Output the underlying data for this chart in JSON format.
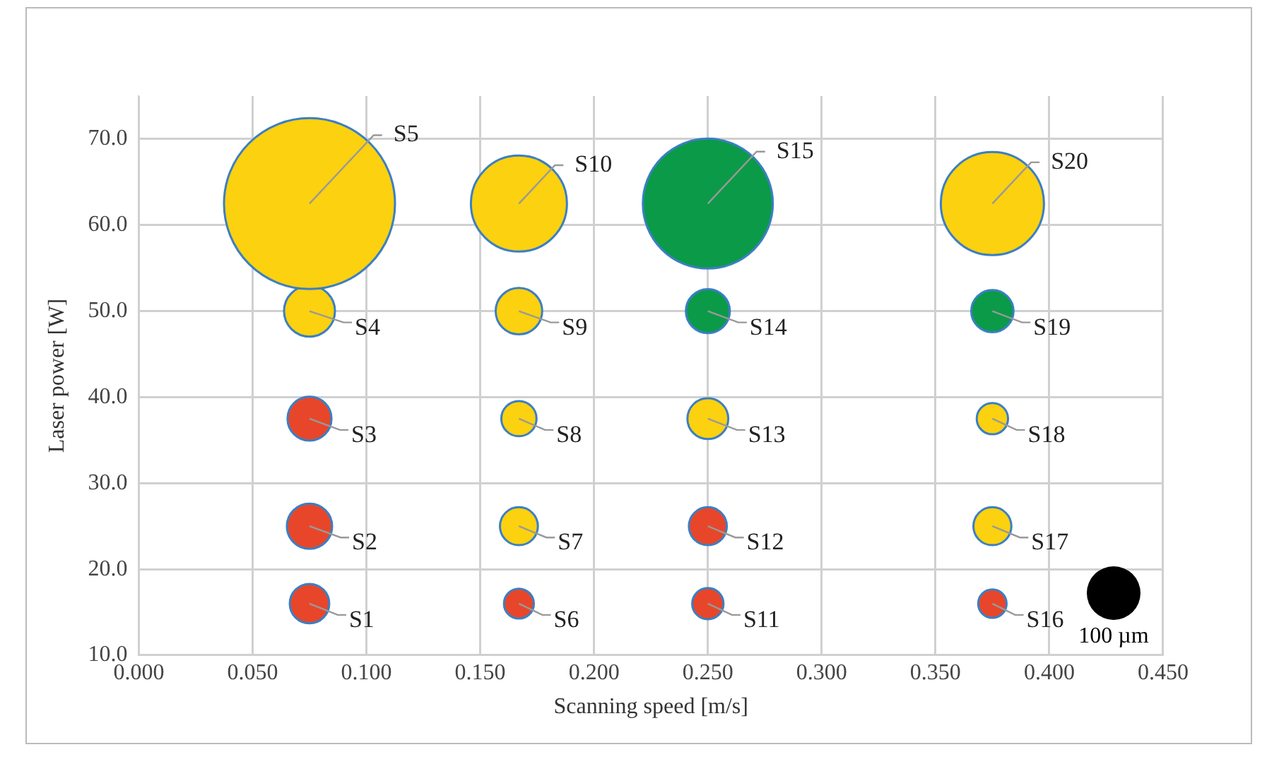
{
  "chart_data": {
    "type": "bubble",
    "xlabel": "Scanning speed [m/s]",
    "ylabel": "Laser power [W]",
    "xlim": [
      0,
      0.45
    ],
    "ylim": [
      10,
      75
    ],
    "xticks": [
      {
        "value": 0,
        "label": "0.000"
      },
      {
        "value": 0.05,
        "label": "0.050"
      },
      {
        "value": 0.1,
        "label": "0.100"
      },
      {
        "value": 0.15,
        "label": "0.150"
      },
      {
        "value": 0.2,
        "label": "0.200"
      },
      {
        "value": 0.25,
        "label": "0.250"
      },
      {
        "value": 0.3,
        "label": "0.300"
      },
      {
        "value": 0.35,
        "label": "0.350"
      },
      {
        "value": 0.4,
        "label": "0.400"
      },
      {
        "value": 0.45,
        "label": "0.450"
      }
    ],
    "yticks": [
      {
        "value": 10,
        "label": "10.0"
      },
      {
        "value": 20,
        "label": "20.0"
      },
      {
        "value": 30,
        "label": "30.0"
      },
      {
        "value": 40,
        "label": "40.0"
      },
      {
        "value": 50,
        "label": "50.0"
      },
      {
        "value": 60,
        "label": "60.0"
      },
      {
        "value": 70,
        "label": "70.0"
      }
    ],
    "grid": true,
    "legend": false,
    "size_legend": [
      {
        "value": 100,
        "label": "100 µm"
      }
    ],
    "series": [
      {
        "color": "#e8462a",
        "x": [
          0.075,
          0.075,
          0.075,
          0.167,
          0.25,
          0.25,
          0.375
        ],
        "values": [
          16,
          25,
          37.5,
          16,
          16,
          25,
          16
        ],
        "sizes": [
          54,
          71,
          67,
          31,
          34,
          50,
          28
        ]
      },
      {
        "color": "#fcd10f",
        "x": [
          0.075,
          0.075,
          0.167,
          0.167,
          0.167,
          0.167,
          0.25,
          0.375,
          0.375,
          0.375
        ],
        "values": [
          50,
          62.5,
          25,
          37.5,
          50,
          62.5,
          37.5,
          25,
          37.5,
          62.5
        ],
        "sizes": [
          90,
          1014,
          50,
          43,
          75,
          320,
          58,
          50,
          34,
          369
        ]
      },
      {
        "color": "#0b9a48",
        "x": [
          0.25,
          0.25,
          0.375
        ],
        "values": [
          50,
          62.5,
          50
        ],
        "sizes": [
          67,
          586,
          62
        ]
      }
    ],
    "annotations": [
      {
        "text": "S1",
        "x": 0.075,
        "y": 16
      },
      {
        "text": "S2",
        "x": 0.075,
        "y": 25
      },
      {
        "text": "S3",
        "x": 0.075,
        "y": 37.5
      },
      {
        "text": "S4",
        "x": 0.075,
        "y": 50
      },
      {
        "text": "S5",
        "x": 0.075,
        "y": 62.5
      },
      {
        "text": "S6",
        "x": 0.167,
        "y": 16
      },
      {
        "text": "S7",
        "x": 0.167,
        "y": 25
      },
      {
        "text": "S8",
        "x": 0.167,
        "y": 37.5
      },
      {
        "text": "S9",
        "x": 0.167,
        "y": 50
      },
      {
        "text": "S10",
        "x": 0.167,
        "y": 62.5
      },
      {
        "text": "S11",
        "x": 0.25,
        "y": 16
      },
      {
        "text": "S12",
        "x": 0.25,
        "y": 25
      },
      {
        "text": "S13",
        "x": 0.25,
        "y": 37.5
      },
      {
        "text": "S14",
        "x": 0.25,
        "y": 50
      },
      {
        "text": "S15",
        "x": 0.25,
        "y": 62.5
      },
      {
        "text": "S16",
        "x": 0.375,
        "y": 16
      },
      {
        "text": "S17",
        "x": 0.375,
        "y": 25
      },
      {
        "text": "S18",
        "x": 0.375,
        "y": 37.5
      },
      {
        "text": "S19",
        "x": 0.375,
        "y": 50
      },
      {
        "text": "S20",
        "x": 0.375,
        "y": 62.5
      }
    ]
  }
}
